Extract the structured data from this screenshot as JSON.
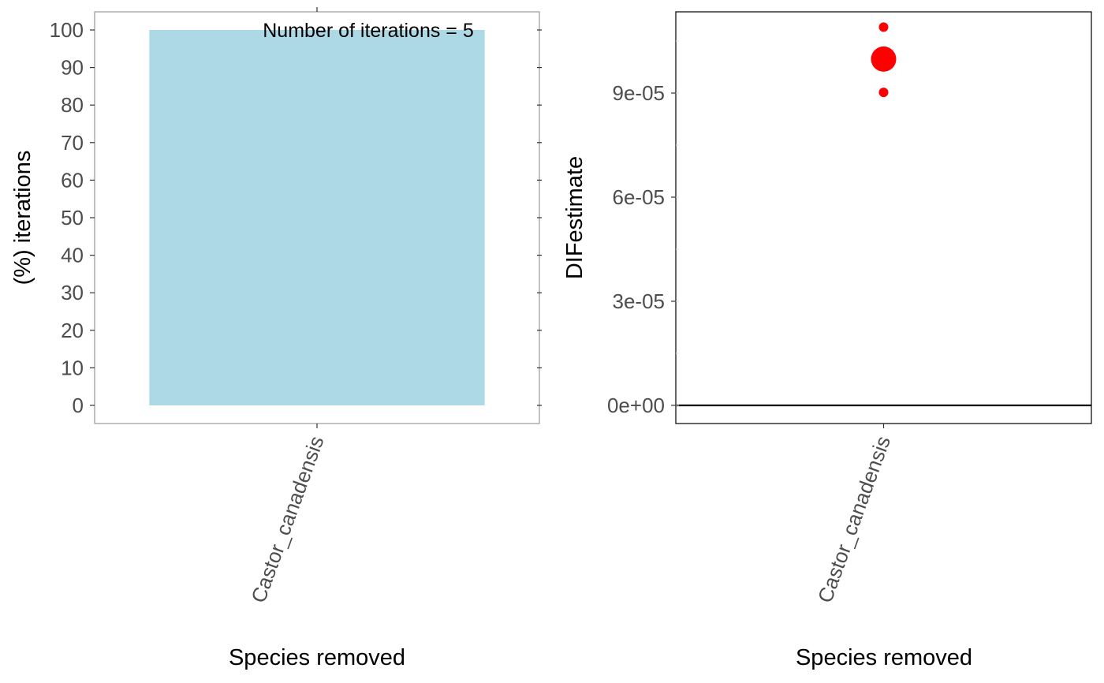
{
  "chart_data": [
    {
      "type": "bar",
      "categories": [
        "Castor_canadensis"
      ],
      "values": [
        100
      ],
      "xlabel": "Species removed",
      "ylabel": "(%) iterations",
      "ylim": [
        0,
        100
      ],
      "yticks": [
        "0",
        "10",
        "20",
        "30",
        "40",
        "50",
        "60",
        "70",
        "80",
        "90",
        "100"
      ],
      "annotation": "Number of iterations = 5",
      "bar_color": "#add8e6",
      "grid": false
    },
    {
      "type": "scatter",
      "categories": [
        "Castor_canadensis"
      ],
      "points": [
        {
          "x": "Castor_canadensis",
          "y": 0.000109,
          "role": "observation"
        },
        {
          "x": "Castor_canadensis",
          "y": 9.98e-05,
          "role": "mean"
        },
        {
          "x": "Castor_canadensis",
          "y": 9.02e-05,
          "role": "observation"
        }
      ],
      "reference_line": 0,
      "xlabel": "Species removed",
      "ylabel": "DIFestimate",
      "yticks": [
        "0e+00",
        "3e-05",
        "6e-05",
        "9e-05"
      ],
      "ytick_values": [
        0,
        3e-05,
        6e-05,
        9e-05
      ],
      "ylim": [
        -5e-06,
        0.000113
      ],
      "point_color": "#ff0000",
      "grid": false
    }
  ]
}
